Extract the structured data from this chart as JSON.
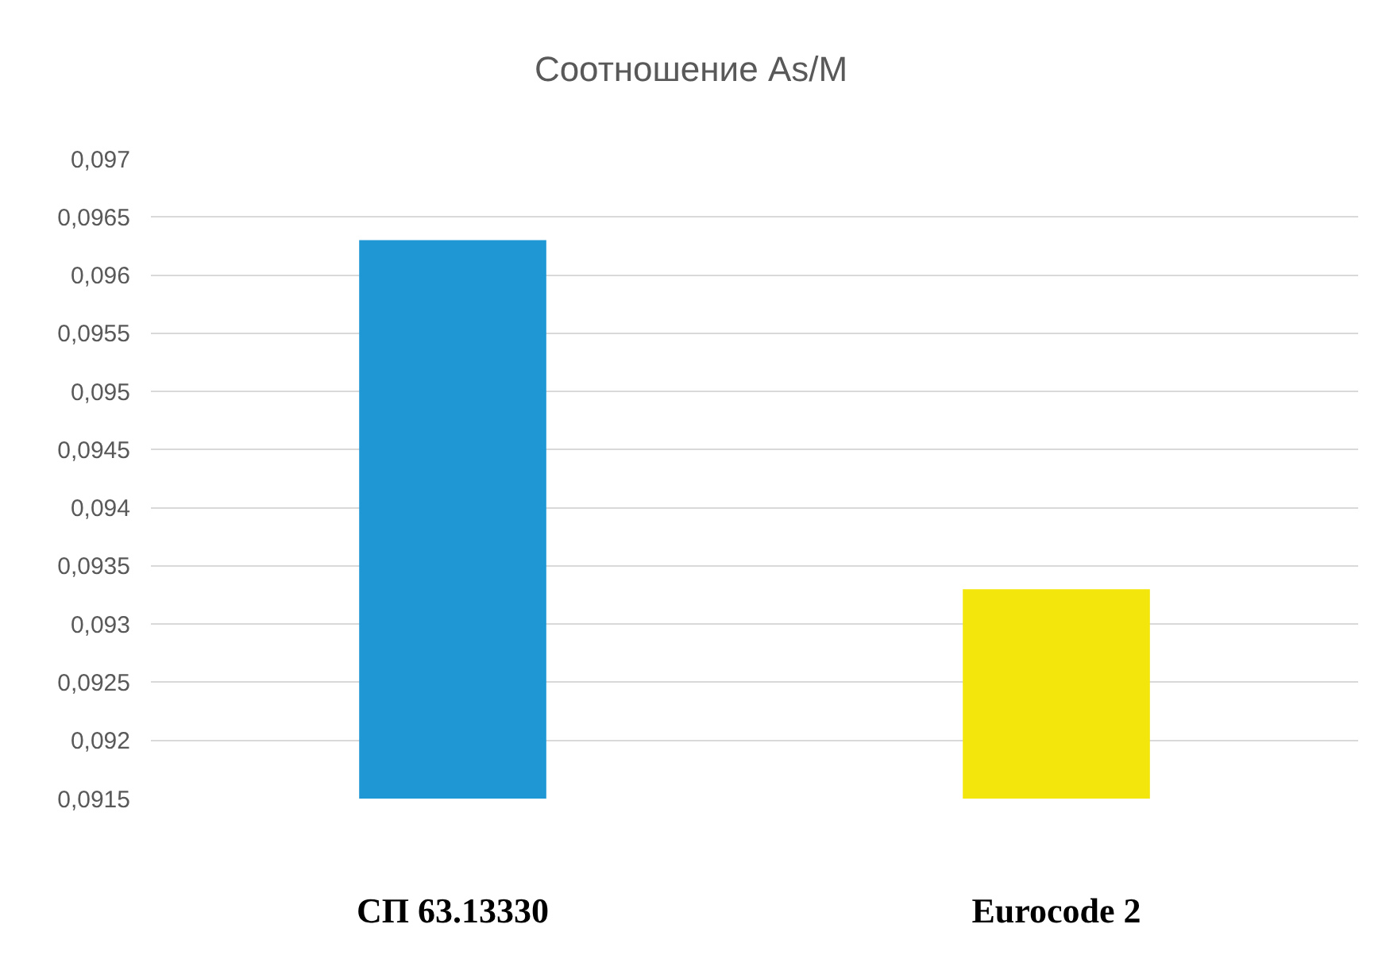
{
  "chart_data": {
    "type": "bar",
    "title": "Соотношение As/M",
    "categories": [
      "СП 63.13330",
      "Eurocode 2"
    ],
    "values": [
      0.0963,
      0.0933
    ],
    "colors": [
      "#1f97d4",
      "#f2e60d"
    ],
    "ylim": [
      0.0915,
      0.097
    ],
    "yticks": [
      {
        "value": 0.0915,
        "label": "0,0915"
      },
      {
        "value": 0.092,
        "label": "0,092"
      },
      {
        "value": 0.0925,
        "label": "0,0925"
      },
      {
        "value": 0.093,
        "label": "0,093"
      },
      {
        "value": 0.0935,
        "label": "0,0935"
      },
      {
        "value": 0.094,
        "label": "0,094"
      },
      {
        "value": 0.0945,
        "label": "0,0945"
      },
      {
        "value": 0.095,
        "label": "0,095"
      },
      {
        "value": 0.0955,
        "label": "0,0955"
      },
      {
        "value": 0.096,
        "label": "0,096"
      },
      {
        "value": 0.0965,
        "label": "0,0965"
      },
      {
        "value": 0.097,
        "label": "0,097"
      }
    ],
    "grid": "y"
  }
}
